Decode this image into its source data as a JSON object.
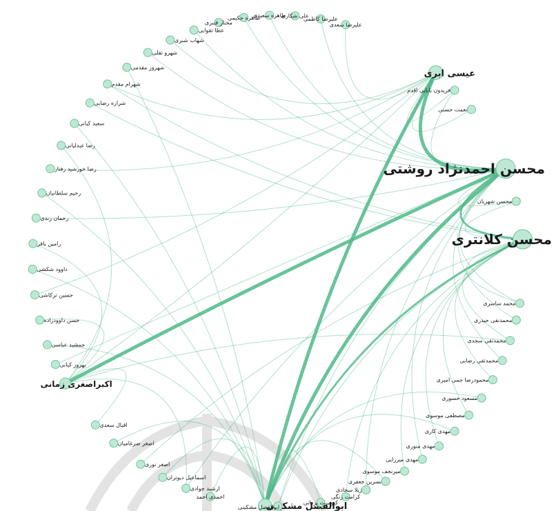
{
  "colors": {
    "edge": "#3fae7e",
    "node_fill": "#bfe8d4",
    "node_stroke": "#6cc49c",
    "label": "#1a1a1a"
  },
  "nodes": [
    {
      "id": "n1",
      "label": "محسن احمدنژاد روشتی",
      "size": "xl"
    },
    {
      "id": "n2",
      "label": "محسن کلانتری",
      "size": "xl"
    },
    {
      "id": "n3",
      "label": "عیسی ابری",
      "size": "l"
    },
    {
      "id": "n4",
      "label": "اکبراصغری زمانی",
      "size": "m"
    },
    {
      "id": "n5",
      "label": "ابوالفضل مشکینی",
      "size": "l"
    },
    {
      "id": "n6",
      "label": "ابوالفضل مشکینی",
      "size": "s"
    },
    {
      "id": "n7",
      "label": "فریدون بابایی اقدم",
      "size": "s"
    },
    {
      "id": "n8",
      "label": "نعمت حسنی",
      "size": "s"
    },
    {
      "id": "n9",
      "label": "محسن شهریان",
      "size": "s"
    },
    {
      "id": "n10",
      "label": "محمد ساسری",
      "size": "s"
    },
    {
      "id": "n11",
      "label": "محمدنقی حیدری",
      "size": "s"
    },
    {
      "id": "n12",
      "label": "محمدتقی سجدی",
      "size": "s"
    },
    {
      "id": "n13",
      "label": "محمدتقی رضایی",
      "size": "s"
    },
    {
      "id": "n14",
      "label": "محمودرضا جمی امیری",
      "size": "s"
    },
    {
      "id": "n15",
      "label": "مسعود حسوری",
      "size": "s"
    },
    {
      "id": "n16",
      "label": "مصطفی موسوی",
      "size": "s"
    },
    {
      "id": "n17",
      "label": "مهدی کاری",
      "size": "s"
    },
    {
      "id": "n18",
      "label": "مهدی منوری",
      "size": "s"
    },
    {
      "id": "n19",
      "label": "مهدی میرزایی",
      "size": "s"
    },
    {
      "id": "n20",
      "label": "میرنجف موسوی",
      "size": "s"
    },
    {
      "id": "n21",
      "label": "نسرین جعفری",
      "size": "s"
    },
    {
      "id": "n22",
      "label": "ژیلا سجادی",
      "size": "s"
    },
    {
      "id": "n23",
      "label": "کرامت زنگی",
      "size": "s"
    },
    {
      "id": "n24",
      "label": "کیومرث یزدانی",
      "size": "s"
    },
    {
      "id": "n25",
      "label": "شهروز مقدمی",
      "size": "s"
    },
    {
      "id": "n26",
      "label": "شهرام مقدم",
      "size": "s"
    },
    {
      "id": "n27",
      "label": "شراره رضایی",
      "size": "s"
    },
    {
      "id": "n28",
      "label": "سعید کیانی",
      "size": "s"
    },
    {
      "id": "n29",
      "label": "رضا عبدلیانی",
      "size": "s"
    },
    {
      "id": "n30",
      "label": "رضا خورشید رفتار",
      "size": "s"
    },
    {
      "id": "n31",
      "label": "رحیم سلطانیان",
      "size": "s"
    },
    {
      "id": "n32",
      "label": "رحمان زندی",
      "size": "s"
    },
    {
      "id": "n33",
      "label": "رامین باقر",
      "size": "s"
    },
    {
      "id": "n34",
      "label": "داوود شکشی",
      "size": "s"
    },
    {
      "id": "n35",
      "label": "حسین ترکاشی",
      "size": "s"
    },
    {
      "id": "n36",
      "label": "حسن داوودزاده",
      "size": "s"
    },
    {
      "id": "n37",
      "label": "جمشید عباسی",
      "size": "s"
    },
    {
      "id": "n38",
      "label": "بهروز کیانی",
      "size": "s"
    },
    {
      "id": "n39",
      "label": "اقبال سعدی",
      "size": "s"
    },
    {
      "id": "n40",
      "label": "اصغر ضرغامیان",
      "size": "s"
    },
    {
      "id": "n41",
      "label": "اصغر نوری",
      "size": "s"
    },
    {
      "id": "n42",
      "label": "اسماعیل دیوتران",
      "size": "s"
    },
    {
      "id": "n43",
      "label": "ارشید جوادی",
      "size": "s"
    },
    {
      "id": "n44",
      "label": "احمدی احمد",
      "size": "s"
    },
    {
      "id": "n45",
      "label": "شهرو تقلی",
      "size": "s"
    },
    {
      "id": "n46",
      "label": "شهاب شبری",
      "size": "s"
    },
    {
      "id": "n47",
      "label": "عطا تقوایی",
      "size": "s"
    },
    {
      "id": "n48",
      "label": "مختار قنبری",
      "size": "s"
    },
    {
      "id": "n49",
      "label": "طاهره حکیمی",
      "size": "s"
    },
    {
      "id": "n50",
      "label": "طاهره سعیدی",
      "size": "s"
    },
    {
      "id": "n51",
      "label": "علی شکاری",
      "size": "s"
    },
    {
      "id": "n52",
      "label": "علیرضا کاظمی",
      "size": "s"
    },
    {
      "id": "n53",
      "label": "علیرضا سعدی",
      "size": "s"
    }
  ],
  "edges": [
    [
      "n1",
      "n3",
      "heavy"
    ],
    [
      "n1",
      "n5",
      "heavy"
    ],
    [
      "n1",
      "n4",
      "heavy"
    ],
    [
      "n2",
      "n5",
      "medium"
    ],
    [
      "n3",
      "n5",
      "heavy"
    ],
    [
      "n1",
      "n2",
      "medium"
    ],
    [
      "n3",
      "n4",
      "light"
    ],
    [
      "n1",
      "n45",
      "light"
    ],
    [
      "n1",
      "n47",
      "light"
    ],
    [
      "n1",
      "n49",
      "light"
    ],
    [
      "n2",
      "n10",
      "light"
    ],
    [
      "n2",
      "n12",
      "light"
    ],
    [
      "n2",
      "n14",
      "light"
    ],
    [
      "n2",
      "n16",
      "light"
    ],
    [
      "n2",
      "n18",
      "light"
    ],
    [
      "n2",
      "n20",
      "light"
    ],
    [
      "n1",
      "n9",
      "light"
    ],
    [
      "n1",
      "n10",
      "light"
    ],
    [
      "n1",
      "n11",
      "light"
    ],
    [
      "n1",
      "n13",
      "light"
    ],
    [
      "n5",
      "n25",
      "light"
    ],
    [
      "n5",
      "n28",
      "light"
    ],
    [
      "n5",
      "n31",
      "light"
    ],
    [
      "n5",
      "n34",
      "light"
    ],
    [
      "n5",
      "n37",
      "light"
    ],
    [
      "n5",
      "n40",
      "light"
    ],
    [
      "n5",
      "n42",
      "light"
    ],
    [
      "n5",
      "n44",
      "light"
    ],
    [
      "n4",
      "n29",
      "light"
    ],
    [
      "n4",
      "n33",
      "light"
    ],
    [
      "n4",
      "n36",
      "light"
    ],
    [
      "n4",
      "n39",
      "light"
    ],
    [
      "n3",
      "n26",
      "light"
    ],
    [
      "n3",
      "n30",
      "light"
    ],
    [
      "n3",
      "n35",
      "light"
    ],
    [
      "n1",
      "n19",
      "light"
    ],
    [
      "n1",
      "n22",
      "light"
    ],
    [
      "n2",
      "n23",
      "light"
    ],
    [
      "n2",
      "n27",
      "light"
    ],
    [
      "n1",
      "n32",
      "light"
    ],
    [
      "n1",
      "n38",
      "light"
    ],
    [
      "n2",
      "n41",
      "light"
    ],
    [
      "n5",
      "n17",
      "light"
    ],
    [
      "n5",
      "n15",
      "light"
    ],
    [
      "n3",
      "n7",
      "light"
    ],
    [
      "n3",
      "n8",
      "light"
    ],
    [
      "n1",
      "n7",
      "light"
    ],
    [
      "n2",
      "n9",
      "light"
    ],
    [
      "n1",
      "n50",
      "light"
    ],
    [
      "n1",
      "n52",
      "light"
    ],
    [
      "n3",
      "n46",
      "light"
    ],
    [
      "n5",
      "n21",
      "light"
    ],
    [
      "n5",
      "n24",
      "light"
    ],
    [
      "n4",
      "n43",
      "light"
    ],
    [
      "n6",
      "n1",
      "light"
    ],
    [
      "n6",
      "n2",
      "light"
    ],
    [
      "n2",
      "n26",
      "light"
    ],
    [
      "n1",
      "n43",
      "light"
    ],
    [
      "n3",
      "n53",
      "light"
    ],
    [
      "n4",
      "n12",
      "light"
    ]
  ]
}
